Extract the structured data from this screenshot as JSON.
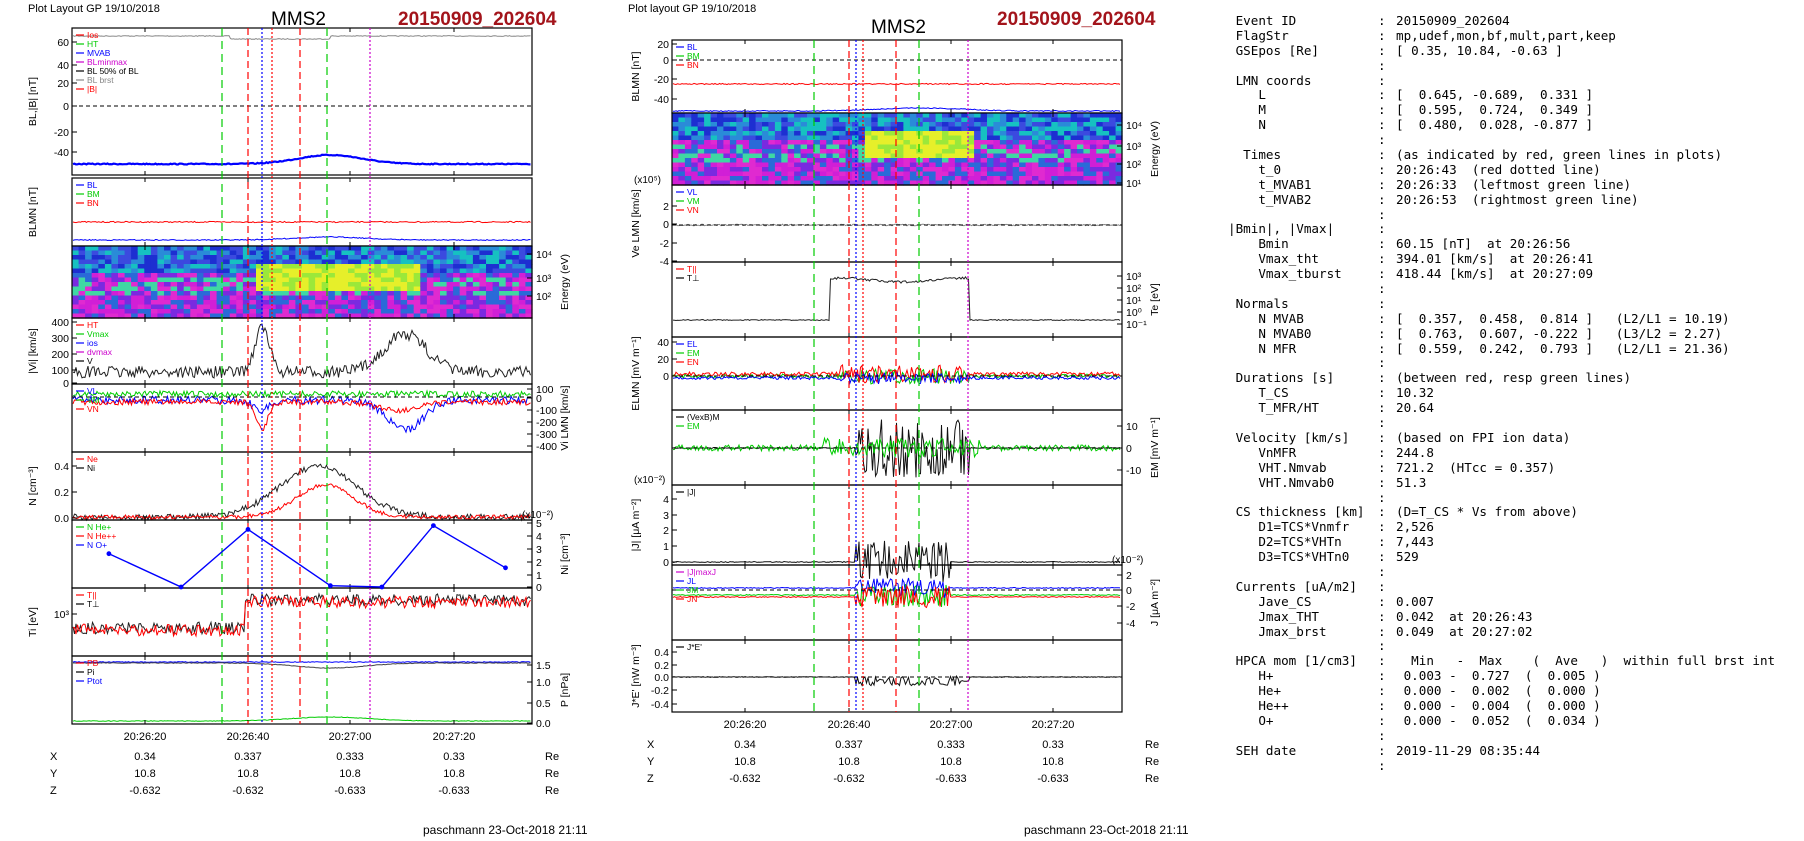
{
  "left_plot": {
    "layout_label": "Plot Layout GP 19/10/2018",
    "spacecraft": "MMS2",
    "event": "20150909_202604",
    "footer": "paschmann 23-Oct-2018 21:11"
  },
  "right_plot": {
    "layout_label": "Plot layout GP 19/10/2018",
    "spacecraft": "MMS2",
    "event": "20150909_202604",
    "footer": "paschmann 23-Oct-2018 21:11"
  },
  "time_axis": {
    "ticks": [
      "20:26:20",
      "20:26:40",
      "20:27:00",
      "20:27:20"
    ]
  },
  "position_table": {
    "rows": [
      {
        "label": "X",
        "values": [
          "0.34",
          "0.337",
          "0.333",
          "0.33"
        ],
        "unit": "Re"
      },
      {
        "label": "Y",
        "values": [
          "10.8",
          "10.8",
          "10.8",
          "10.8"
        ],
        "unit": "Re"
      },
      {
        "label": "Z",
        "values": [
          "-0.632",
          "-0.632",
          "-0.633",
          "-0.633"
        ],
        "unit": "Re"
      }
    ]
  },
  "colors": {
    "bx_blue": "#0000ff",
    "green": "#00cc00",
    "red": "#ff0000",
    "magenta": "#cc00cc",
    "black": "#000000",
    "title_red": "#a3141b",
    "gray": "#888888"
  },
  "chart_data": [
    {
      "type": "line",
      "panel": "left-b-total",
      "ylabel": "BL,|B| [nT]",
      "ylim": [
        -60,
        65
      ],
      "yticks": [
        "60",
        "40",
        "20",
        "0",
        "-20",
        "-40"
      ],
      "legend": [
        "Ios",
        "HT",
        "MVAB",
        "BLminmax",
        "BL 50% of BL",
        "BL brst",
        "|B|"
      ]
    },
    {
      "type": "line",
      "panel": "left-b-lmn",
      "ylabel": "BLMN [nT]",
      "legend": [
        "BL",
        "BM",
        "BN"
      ]
    },
    {
      "type": "heatmap",
      "panel": "left-ion-spectrogram",
      "ylabel": "Energy (eV)",
      "yticks": [
        "10⁴",
        "10³",
        "10²"
      ]
    },
    {
      "type": "line",
      "panel": "left-vi-magnitude",
      "ylabel": "|Vi| [km/s]",
      "ylim": [
        0,
        400
      ],
      "yticks": [
        "400",
        "300",
        "200",
        "100",
        "0"
      ],
      "legend": [
        "HT",
        "Vmax",
        "ios",
        "dvmax",
        "V"
      ]
    },
    {
      "type": "line",
      "panel": "left-vi-lmn",
      "ylabel": "Vi LMN [km/s]",
      "ylim": [
        -400,
        100
      ],
      "yticks": [
        "100",
        "0",
        "-100",
        "-200",
        "-300",
        "-400"
      ],
      "legend": [
        "VL",
        "VM",
        "VN"
      ]
    },
    {
      "type": "line",
      "panel": "left-density",
      "ylabel": "N [cm⁻³]",
      "ylim": [
        0,
        0.5
      ],
      "yticks": [
        "0.4",
        "0.2",
        "0.0"
      ],
      "legend": [
        "Ne",
        "Ni"
      ]
    },
    {
      "type": "line",
      "panel": "left-hpca-density",
      "ylabel": "Ni [cm⁻³]",
      "y_multiplier": "(x10⁻²)",
      "ylim": [
        0,
        5
      ],
      "yticks": [
        "5",
        "4",
        "3",
        "2",
        "1",
        "0"
      ],
      "legend": [
        "N He+",
        "N He++",
        "N O+"
      ],
      "series": [
        {
          "name": "N O+",
          "x": [
            "20:26:13",
            "20:26:27",
            "20:26:40",
            "20:26:56",
            "20:27:06",
            "20:27:16",
            "20:27:30"
          ],
          "y": [
            2.6,
            0,
            4.5,
            0.1,
            0,
            4.8,
            1.5
          ]
        }
      ]
    },
    {
      "type": "line",
      "panel": "left-ion-temperature",
      "ylabel": "Ti [eV]",
      "yticks": [
        "10³"
      ],
      "legend": [
        "T||",
        "T⊥"
      ]
    },
    {
      "type": "line",
      "panel": "left-pressure",
      "ylabel": "P [nPa]",
      "ylim": [
        0,
        1.6
      ],
      "yticks": [
        "1.5",
        "1.0",
        "0.5",
        "0.0"
      ],
      "legend": [
        "PB",
        "Pi",
        "Ptot"
      ]
    },
    {
      "type": "line",
      "panel": "right-b-lmn",
      "ylabel": "BLMN [nT]",
      "ylim": [
        -50,
        20
      ],
      "yticks": [
        "20",
        "0",
        "-20",
        "-40"
      ],
      "legend": [
        "BL",
        "BM",
        "BN"
      ]
    },
    {
      "type": "heatmap",
      "panel": "right-electron-spectrogram",
      "ylabel": "Energy (eV)",
      "yticks": [
        "10⁴",
        "10³",
        "10²",
        "10¹"
      ]
    },
    {
      "type": "line",
      "panel": "right-ve-lmn",
      "ylabel": "Ve LMN [km/s]",
      "y_multiplier": "(x10⁵)",
      "ylim": [
        -4,
        3
      ],
      "yticks": [
        "2",
        "0",
        "-2",
        "-4"
      ],
      "legend": [
        "VL",
        "VM",
        "VN"
      ]
    },
    {
      "type": "line",
      "panel": "right-electron-temperature",
      "ylabel": "Te [eV]",
      "yticks": [
        "10³",
        "10²",
        "10¹",
        "10⁰",
        "10⁻¹"
      ],
      "legend": [
        "T||",
        "T⊥"
      ]
    },
    {
      "type": "line",
      "panel": "right-e-lmn",
      "ylabel": "ELMN [mV m⁻¹]",
      "ylim": [
        -10,
        40
      ],
      "yticks": [
        "40",
        "20",
        "0"
      ],
      "legend": [
        "EL",
        "EM",
        "EN"
      ]
    },
    {
      "type": "line",
      "panel": "right-em",
      "ylabel": "EM [mV m⁻¹]",
      "yticks": [
        "10",
        "0",
        "-10"
      ],
      "legend": [
        "(VexB)M",
        "EM"
      ]
    },
    {
      "type": "line",
      "panel": "right-j-magnitude",
      "ylabel": "|J| [μA m⁻²]",
      "y_multiplier": "(x10⁻²)",
      "ylim": [
        0,
        4.5
      ],
      "yticks": [
        "4",
        "3",
        "2",
        "1",
        "0"
      ],
      "legend": [
        "|J|"
      ]
    },
    {
      "type": "line",
      "panel": "right-j-lmn",
      "ylabel": "J [μA m⁻²]",
      "y_multiplier": "(x10⁻²)",
      "ylim": [
        -4,
        2.5
      ],
      "yticks": [
        "2",
        "0",
        "-2",
        "-4"
      ],
      "legend": [
        "|J|maxJ",
        "JL",
        "JM",
        "JN"
      ]
    },
    {
      "type": "line",
      "panel": "right-jdote",
      "ylabel": "J*E' [nW m⁻³]",
      "ylim": [
        -0.45,
        0.5
      ],
      "yticks": [
        "0.4",
        "0.2",
        "0.0",
        "-0.2",
        "-0.4"
      ],
      "legend": [
        "J*E'"
      ]
    }
  ],
  "info": {
    "rows": [
      {
        "key": " Event ID",
        "val": "20150909_202604"
      },
      {
        "key": " FlagStr",
        "val": "mp,udef,mon,bf,mult,part,keep"
      },
      {
        "key": " GSEpos [Re]",
        "val": "[ 0.35, 10.84, -0.63 ]"
      },
      {
        "key": "",
        "val": ""
      },
      {
        "key": " LMN coords",
        "val": ""
      },
      {
        "key": "    L",
        "val": "[  0.645, -0.689,  0.331 ]"
      },
      {
        "key": "    M",
        "val": "[  0.595,  0.724,  0.349 ]"
      },
      {
        "key": "    N",
        "val": "[  0.480,  0.028, -0.877 ]"
      },
      {
        "key": "",
        "val": ""
      },
      {
        "key": "  Times",
        "val": "(as indicated by red, green lines in plots)"
      },
      {
        "key": "    t_0",
        "val": "20:26:43  (red dotted line)"
      },
      {
        "key": "    t_MVAB1",
        "val": "20:26:33  (leftmost green line)"
      },
      {
        "key": "    t_MVAB2",
        "val": "20:26:53  (rightmost green line)"
      },
      {
        "key": "",
        "val": ""
      },
      {
        "key": "|Bmin|, |Vmax|",
        "val": ""
      },
      {
        "key": "    Bmin",
        "val": "60.15 [nT]  at 20:26:56"
      },
      {
        "key": "    Vmax_tht",
        "val": "394.01 [km/s]  at 20:26:41"
      },
      {
        "key": "    Vmax_tburst",
        "val": "418.44 [km/s]  at 20:27:09"
      },
      {
        "key": "",
        "val": ""
      },
      {
        "key": " Normals",
        "val": ""
      },
      {
        "key": "    N MVAB",
        "val": "[  0.357,  0.458,  0.814 ]   (L2/L1 = 10.19)"
      },
      {
        "key": "    N MVAB0",
        "val": "[  0.763,  0.607, -0.222 ]   (L3/L2 = 2.27)"
      },
      {
        "key": "    N MFR",
        "val": "[  0.559,  0.242,  0.793 ]   (L2/L1 = 21.36)"
      },
      {
        "key": "",
        "val": ""
      },
      {
        "key": " Durations [s]",
        "val": "(between red, resp green lines)"
      },
      {
        "key": "    T_CS",
        "val": "10.32"
      },
      {
        "key": "    T_MFR/HT",
        "val": "20.64"
      },
      {
        "key": "",
        "val": ""
      },
      {
        "key": " Velocity [km/s]",
        "val": "(based on FPI ion data)"
      },
      {
        "key": "    VnMFR",
        "val": "244.8"
      },
      {
        "key": "    VHT.Nmvab",
        "val": "721.2  (HTcc = 0.357)"
      },
      {
        "key": "    VHT.Nmvab0",
        "val": "51.3"
      },
      {
        "key": "",
        "val": ""
      },
      {
        "key": " CS thickness [km]",
        "val": "(D=T_CS * Vs from above)"
      },
      {
        "key": "    D1=TCS*Vnmfr",
        "val": "2,526"
      },
      {
        "key": "    D2=TCS*VHTn",
        "val": "7,443"
      },
      {
        "key": "    D3=TCS*VHTn0",
        "val": "529"
      },
      {
        "key": "",
        "val": ""
      },
      {
        "key": " Currents [uA/m2]",
        "val": ""
      },
      {
        "key": "    Jave_CS",
        "val": "0.007"
      },
      {
        "key": "    Jmax_THT",
        "val": "0.042  at 20:26:43"
      },
      {
        "key": "    Jmax_brst",
        "val": "0.049  at 20:27:02"
      },
      {
        "key": "",
        "val": ""
      },
      {
        "key": " HPCA mom [1/cm3]",
        "val": "  Min   -  Max    (  Ave   )  within full brst int"
      },
      {
        "key": "    H+",
        "val": " 0.003 -  0.727  (  0.005 )"
      },
      {
        "key": "    He+",
        "val": " 0.000 -  0.002  (  0.000 )"
      },
      {
        "key": "    He++",
        "val": " 0.000 -  0.004  (  0.000 )"
      },
      {
        "key": "    O+",
        "val": " 0.000 -  0.052  (  0.034 )"
      },
      {
        "key": "",
        "val": ""
      },
      {
        "key": " SEH date",
        "val": "2019-11-29 08:35:44"
      },
      {
        "key": "",
        "val": ""
      }
    ]
  }
}
